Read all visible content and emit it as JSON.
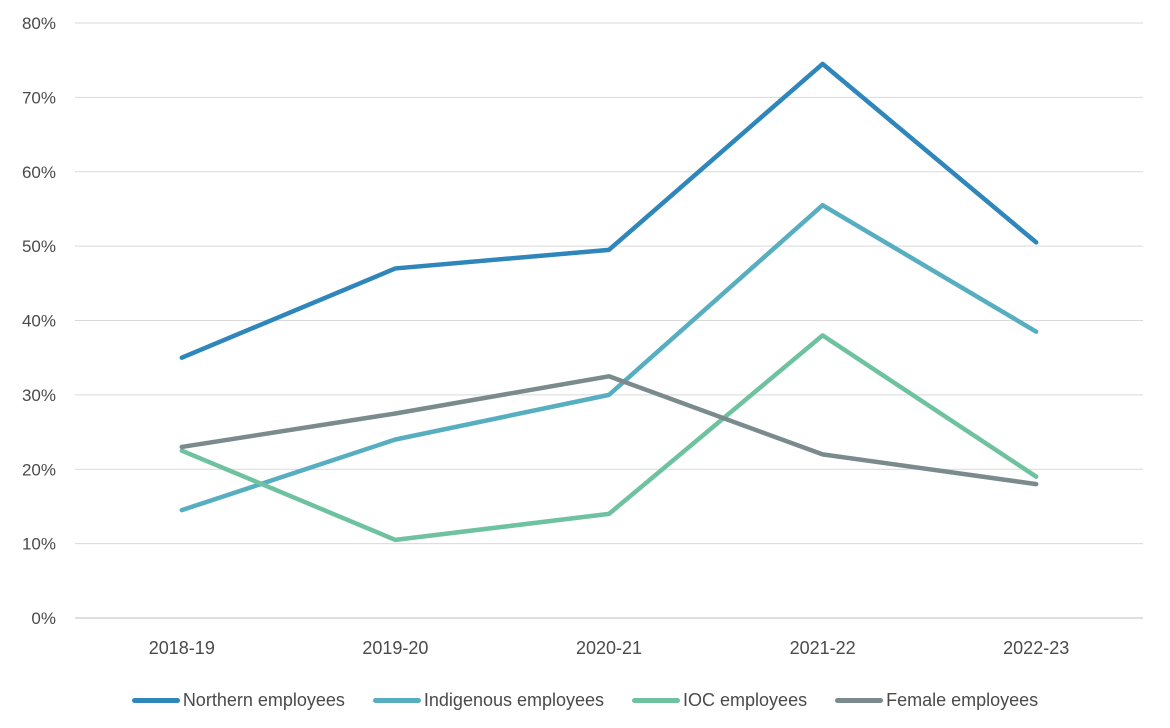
{
  "chart_data": {
    "type": "line",
    "title": "",
    "xlabel": "",
    "ylabel": "",
    "categories": [
      "2018-19",
      "2019-20",
      "2020-21",
      "2021-22",
      "2022-23"
    ],
    "series": [
      {
        "name": "Northern employees",
        "color": "#2E86BB",
        "values": [
          35,
          47,
          49.5,
          74.5,
          50.5
        ]
      },
      {
        "name": "Indigenous employees",
        "color": "#56AEC0",
        "values": [
          14.5,
          24,
          30,
          55.5,
          38.5
        ]
      },
      {
        "name": "IOC employees",
        "color": "#6FC2A0",
        "values": [
          22.5,
          10.5,
          14,
          38,
          19
        ]
      },
      {
        "name": "Female employees",
        "color": "#7A8A8D",
        "values": [
          23,
          27.5,
          32.5,
          22,
          18
        ]
      }
    ],
    "ylim": [
      0,
      80
    ],
    "ytick_step": 10,
    "ytick_labels": [
      "0%",
      "10%",
      "20%",
      "30%",
      "40%",
      "50%",
      "60%",
      "70%",
      "80%"
    ],
    "grid": true,
    "legend_position": "bottom"
  },
  "style": {
    "background": "#FFFFFF",
    "gridline_color": "#D9D9D9",
    "axis_line_color": "#BFBFBF",
    "text_color": "#4A4A4A"
  }
}
